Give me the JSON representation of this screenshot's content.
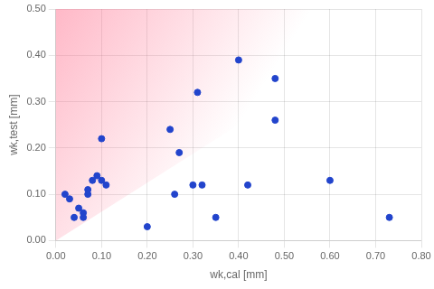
{
  "chart_data": {
    "type": "scatter",
    "x": [
      0.02,
      0.03,
      0.04,
      0.05,
      0.06,
      0.06,
      0.07,
      0.07,
      0.08,
      0.09,
      0.1,
      0.1,
      0.11,
      0.2,
      0.25,
      0.26,
      0.27,
      0.3,
      0.31,
      0.32,
      0.35,
      0.4,
      0.42,
      0.48,
      0.48,
      0.6,
      0.73
    ],
    "values": [
      0.1,
      0.09,
      0.05,
      0.07,
      0.05,
      0.06,
      0.11,
      0.1,
      0.13,
      0.14,
      0.13,
      0.22,
      0.12,
      0.03,
      0.24,
      0.1,
      0.19,
      0.12,
      0.32,
      0.12,
      0.05,
      0.39,
      0.12,
      0.35,
      0.26,
      0.13,
      0.05
    ],
    "color": "#2244cc",
    "marker": "circle",
    "xlabel": "wk,cal [mm]",
    "ylabel": "wk,test [mm]",
    "xlim": [
      0.0,
      0.8
    ],
    "ylim": [
      0.0,
      0.5
    ],
    "xticks": [
      {
        "value": 0.0,
        "label": "0.00"
      },
      {
        "value": 0.1,
        "label": "0.10"
      },
      {
        "value": 0.2,
        "label": "0.20"
      },
      {
        "value": 0.3,
        "label": "0.30"
      },
      {
        "value": 0.4,
        "label": "0.40"
      },
      {
        "value": 0.5,
        "label": "0.50"
      },
      {
        "value": 0.6,
        "label": "0.60"
      },
      {
        "value": 0.7,
        "label": "0.70"
      },
      {
        "value": 0.8,
        "label": "0.80"
      }
    ],
    "yticks": [
      {
        "value": 0.0,
        "label": "0.00"
      },
      {
        "value": 0.1,
        "label": "0.10"
      },
      {
        "value": 0.2,
        "label": "0.20"
      },
      {
        "value": 0.3,
        "label": "0.30"
      },
      {
        "value": 0.4,
        "label": "0.40"
      },
      {
        "value": 0.5,
        "label": "0.50"
      }
    ],
    "grid": true
  }
}
